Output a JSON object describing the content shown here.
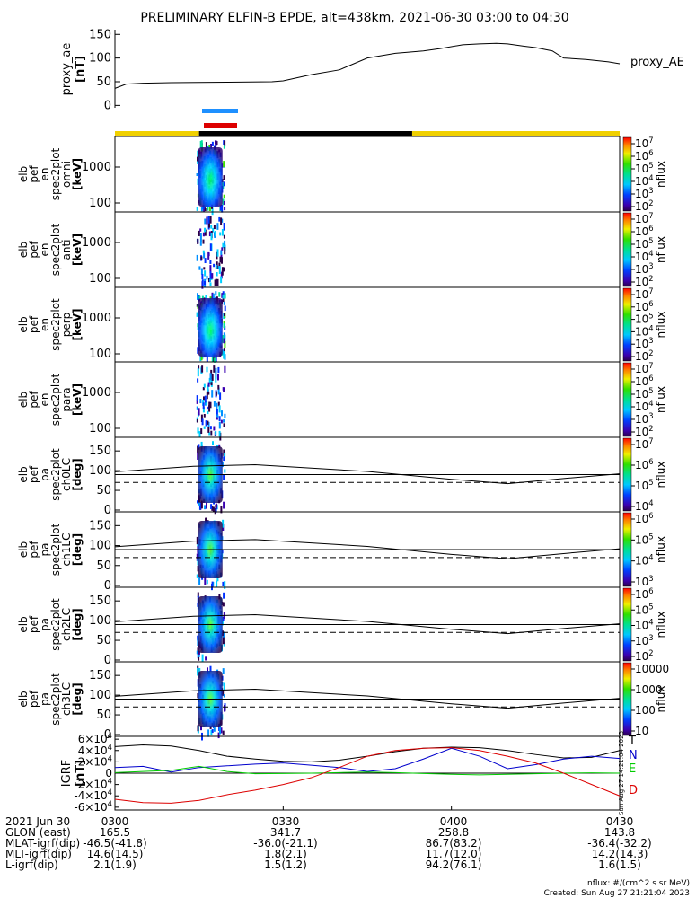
{
  "title": "PRELIMINARY ELFIN-B EPDE, alt=438km, 2021-06-30 03:00 to 04:30",
  "chart_data": {
    "type": "line",
    "time_range": [
      "2021-06-30 03:00",
      "2021-06-30 04:30"
    ],
    "proxy_ae": {
      "ylabel": [
        "proxy_ae",
        "[nT]"
      ],
      "legend": "proxy_AE",
      "yticks": [
        "150",
        "100",
        "50",
        "0"
      ],
      "ylim": [
        -5,
        160
      ],
      "x_min": [
        0,
        2,
        5,
        10,
        20,
        28,
        30,
        35,
        40,
        45,
        50,
        55,
        58,
        62,
        65,
        68,
        70,
        73,
        75,
        78,
        80,
        84,
        88,
        90
      ],
      "values": [
        36,
        45,
        47,
        48,
        49,
        50,
        52,
        65,
        75,
        100,
        110,
        115,
        120,
        128,
        130,
        131,
        130,
        125,
        122,
        115,
        100,
        97,
        92,
        88
      ]
    },
    "science_bars": [
      "blue",
      "red"
    ],
    "eclipse_bar": {
      "segments": [
        "sunlit",
        "eclipse",
        "sunlit"
      ],
      "x_min": [
        0,
        15,
        53,
        90
      ]
    },
    "panels": [
      {
        "ylabel": [
          "elb",
          "pef",
          "en",
          "spec2plot",
          "omni",
          "[keV]"
        ],
        "yticks": [
          "1000",
          "100"
        ],
        "colorbar": {
          "label": "nflux",
          "ticks": [
            "10^7",
            "10^6",
            "10^5",
            "10^4",
            "10^3",
            "10^2"
          ]
        },
        "type": "heatmap"
      },
      {
        "ylabel": [
          "elb",
          "pef",
          "en",
          "spec2plot",
          "anti",
          "[keV]"
        ],
        "yticks": [
          "1000",
          "100"
        ],
        "colorbar": {
          "label": "nflux",
          "ticks": [
            "10^7",
            "10^6",
            "10^5",
            "10^4",
            "10^3",
            "10^2"
          ]
        },
        "type": "heatmap"
      },
      {
        "ylabel": [
          "elb",
          "pef",
          "en",
          "spec2plot",
          "perp",
          "[keV]"
        ],
        "yticks": [
          "1000",
          "100"
        ],
        "colorbar": {
          "label": "nflux",
          "ticks": [
            "10^7",
            "10^6",
            "10^5",
            "10^4",
            "10^3",
            "10^2"
          ]
        },
        "type": "heatmap"
      },
      {
        "ylabel": [
          "elb",
          "pef",
          "en",
          "spec2plot",
          "para",
          "[keV]"
        ],
        "yticks": [
          "1000",
          "100"
        ],
        "colorbar": {
          "label": "nflux",
          "ticks": [
            "10^7",
            "10^6",
            "10^5",
            "10^4",
            "10^3",
            "10^2"
          ]
        },
        "type": "heatmap"
      },
      {
        "ylabel": [
          "elb",
          "pef",
          "pa",
          "spec2plot",
          "ch0LC",
          "[deg]"
        ],
        "yticks": [
          "150",
          "100",
          "50",
          "0"
        ],
        "colorbar": {
          "label": "nflux",
          "ticks": [
            "10^7",
            "10^6",
            "10^5",
            "10^4"
          ]
        },
        "type": "heatmap"
      },
      {
        "ylabel": [
          "elb",
          "pef",
          "pa",
          "spec2plot",
          "ch1LC",
          "[deg]"
        ],
        "yticks": [
          "150",
          "100",
          "50",
          "0"
        ],
        "colorbar": {
          "label": "nflux",
          "ticks": [
            "10^6",
            "10^5",
            "10^4",
            "10^3"
          ]
        },
        "type": "heatmap"
      },
      {
        "ylabel": [
          "elb",
          "pef",
          "pa",
          "spec2plot",
          "ch2LC",
          "[deg]"
        ],
        "yticks": [
          "150",
          "100",
          "50",
          "0"
        ],
        "colorbar": {
          "label": "nflux",
          "ticks": [
            "10^6",
            "10^5",
            "10^4",
            "10^3",
            "10^2"
          ]
        },
        "type": "heatmap"
      },
      {
        "ylabel": [
          "elb",
          "pef",
          "pa",
          "spec2plot",
          "ch3LC",
          "[deg]"
        ],
        "yticks": [
          "150",
          "100",
          "50",
          "0"
        ],
        "colorbar": {
          "label": "nflux",
          "ticks": [
            "10000",
            "1000",
            "100",
            "10"
          ]
        },
        "type": "heatmap"
      }
    ],
    "loss_cone": {
      "x_min": [
        0,
        14,
        25,
        45,
        60,
        70,
        80,
        90
      ],
      "solid_deg": [
        97,
        111,
        115,
        98,
        78,
        67,
        80,
        92
      ],
      "dashed_deg": 70
    },
    "igrf": {
      "ylabel": [
        "IGRF",
        "[nT]"
      ],
      "yticks": [
        "6×10^4",
        "4×10^4",
        "2×10^4",
        "0",
        "-2×10^4",
        "-4×10^4",
        "-6×10^4"
      ],
      "ylim": [
        -65000,
        65000
      ],
      "x_min": [
        0,
        5,
        10,
        15,
        20,
        25,
        30,
        35,
        40,
        45,
        50,
        55,
        60,
        65,
        70,
        75,
        80,
        85,
        90
      ],
      "series": [
        {
          "name": "T",
          "color": "#000000",
          "values": [
            47000,
            50000,
            48000,
            40000,
            30000,
            25000,
            21000,
            20000,
            23000,
            30000,
            38000,
            44000,
            46000,
            45000,
            40000,
            33000,
            27000,
            28000,
            40000
          ]
        },
        {
          "name": "N",
          "color": "#0000cc",
          "values": [
            10000,
            12000,
            2000,
            10000,
            13000,
            16000,
            18000,
            14000,
            10000,
            3000,
            8000,
            25000,
            44000,
            30000,
            8000,
            15000,
            25000,
            30000,
            26000
          ]
        },
        {
          "name": "E",
          "color": "#00cc00",
          "values": [
            1000,
            3000,
            5000,
            12000,
            3000,
            -1000,
            -500,
            0,
            1000,
            2000,
            1000,
            -500,
            -2000,
            -3000,
            -2000,
            -1000,
            0,
            500,
            0
          ]
        },
        {
          "name": "D",
          "color": "#dd0000",
          "values": [
            -46000,
            -52000,
            -53000,
            -48000,
            -38000,
            -30000,
            -20000,
            -8000,
            10000,
            30000,
            40000,
            44000,
            45000,
            40000,
            30000,
            18000,
            0,
            -20000,
            -40000
          ]
        }
      ]
    },
    "side_label": "Sun Aug 27 14:21:04 2023",
    "footer": {
      "rows": [
        {
          "label": "2021 Jun 30",
          "values": [
            "0300",
            "0330",
            "0400",
            "0430"
          ]
        },
        {
          "label": "GLON (east)",
          "values": [
            "165.5",
            "341.7",
            "258.8",
            "143.8"
          ]
        },
        {
          "label": "MLAT-igrf(dip)",
          "values": [
            "-46.5(-41.8)",
            "-36.0(-21.1)",
            "86.7(83.2)",
            "-36.4(-32.2)"
          ]
        },
        {
          "label": "MLT-igrf(dip)",
          "values": [
            "14.6(14.5)",
            "1.8(2.1)",
            "11.7(12.0)",
            "14.2(14.3)"
          ]
        },
        {
          "label": "L-igrf(dip)",
          "values": [
            "2.1(1.9)",
            "1.5(1.2)",
            "94.2(76.1)",
            "1.6(1.5)"
          ]
        }
      ],
      "units_note": "nflux: #/(cm^2 s sr MeV)",
      "created": "Created: Sun Aug 27 21:21:04 2023"
    }
  }
}
